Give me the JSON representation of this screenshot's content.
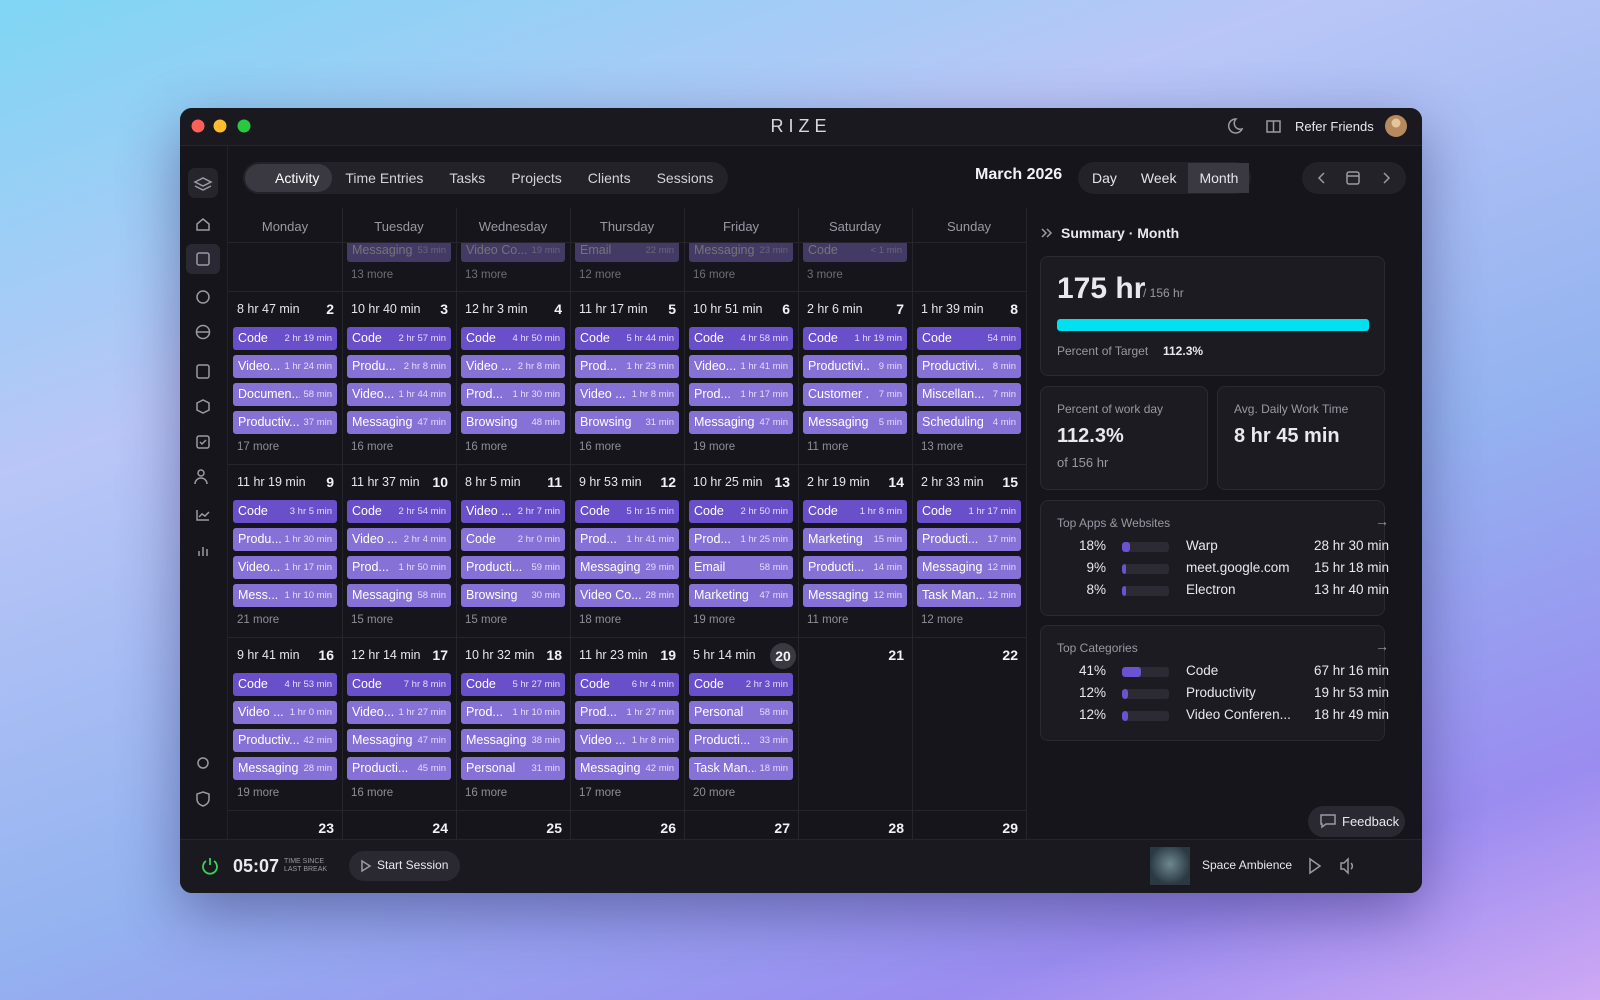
{
  "app_title": "RIZE",
  "header": {
    "refer": "Refer Friends"
  },
  "tabs": [
    "Activity",
    "Time Entries",
    "Tasks",
    "Projects",
    "Clients",
    "Sessions"
  ],
  "month_label": "March 2026",
  "views": [
    "Day",
    "Week",
    "Month"
  ],
  "active_view": 2,
  "active_tab": 0,
  "calendar": {
    "weekdays": [
      "Monday",
      "Tuesday",
      "Wednesday",
      "Thursday",
      "Friday",
      "Saturday",
      "Sunday"
    ],
    "weeks": [
      {
        "days": [
          {},
          {
            "entries": [
              {
                "name": "Messaging",
                "time": "53 min"
              }
            ],
            "more": "13 more"
          },
          {
            "entries": [
              {
                "name": "Video Co...",
                "time": "19 min"
              }
            ],
            "more": "13 more"
          },
          {
            "entries": [
              {
                "name": "Email",
                "time": "22 min"
              }
            ],
            "more": "12 more"
          },
          {
            "entries": [
              {
                "name": "Messaging",
                "time": "23 min"
              }
            ],
            "more": "16 more"
          },
          {
            "entries": [
              {
                "name": "Code",
                "time": "< 1 min"
              }
            ],
            "more": "3 more"
          },
          {}
        ]
      },
      {
        "days": [
          {
            "total": "8 hr 47 min",
            "date": 2,
            "entries": [
              {
                "name": "Code",
                "time": "2 hr 19 min"
              },
              {
                "name": "Video...",
                "time": "1 hr 24 min"
              },
              {
                "name": "Documen...",
                "time": "58 min"
              },
              {
                "name": "Productiv...",
                "time": "37 min"
              }
            ],
            "more": "17 more"
          },
          {
            "total": "10 hr 40 min",
            "date": 3,
            "entries": [
              {
                "name": "Code",
                "time": "2 hr 57 min"
              },
              {
                "name": "Produ...",
                "time": "2 hr 8 min"
              },
              {
                "name": "Video...",
                "time": "1 hr 44 min"
              },
              {
                "name": "Messaging",
                "time": "47 min"
              }
            ],
            "more": "16 more"
          },
          {
            "total": "12 hr 3 min",
            "date": 4,
            "entries": [
              {
                "name": "Code",
                "time": "4 hr 50 min"
              },
              {
                "name": "Video ...",
                "time": "2 hr 8 min"
              },
              {
                "name": "Prod...",
                "time": "1 hr 30 min"
              },
              {
                "name": "Browsing",
                "time": "48 min"
              }
            ],
            "more": "16 more"
          },
          {
            "total": "11 hr 17 min",
            "date": 5,
            "entries": [
              {
                "name": "Code",
                "time": "5 hr 44 min"
              },
              {
                "name": "Prod...",
                "time": "1 hr 23 min"
              },
              {
                "name": "Video ...",
                "time": "1 hr 8 min"
              },
              {
                "name": "Browsing",
                "time": "31 min"
              }
            ],
            "more": "16 more"
          },
          {
            "total": "10 hr 51 min",
            "date": 6,
            "entries": [
              {
                "name": "Code",
                "time": "4 hr 58 min"
              },
              {
                "name": "Video...",
                "time": "1 hr 41 min"
              },
              {
                "name": "Prod...",
                "time": "1 hr 17 min"
              },
              {
                "name": "Messaging",
                "time": "47 min"
              }
            ],
            "more": "19 more"
          },
          {
            "total": "2 hr 6 min",
            "date": 7,
            "entries": [
              {
                "name": "Code",
                "time": "1 hr 19 min"
              },
              {
                "name": "Productivi...",
                "time": "9 min"
              },
              {
                "name": "Customer ...",
                "time": "7 min"
              },
              {
                "name": "Messaging",
                "time": "5 min"
              }
            ],
            "more": "11 more"
          },
          {
            "total": "1 hr 39 min",
            "date": 8,
            "entries": [
              {
                "name": "Code",
                "time": "54 min"
              },
              {
                "name": "Productivi...",
                "time": "8 min"
              },
              {
                "name": "Miscellan...",
                "time": "7 min"
              },
              {
                "name": "Scheduling",
                "time": "4 min"
              }
            ],
            "more": "13 more"
          }
        ]
      },
      {
        "days": [
          {
            "total": "11 hr 19 min",
            "date": 9,
            "entries": [
              {
                "name": "Code",
                "time": "3 hr 5 min"
              },
              {
                "name": "Produ...",
                "time": "1 hr 30 min"
              },
              {
                "name": "Video...",
                "time": "1 hr 17 min"
              },
              {
                "name": "Mess...",
                "time": "1 hr 10 min"
              }
            ],
            "more": "21 more"
          },
          {
            "total": "11 hr 37 min",
            "date": 10,
            "entries": [
              {
                "name": "Code",
                "time": "2 hr 54 min"
              },
              {
                "name": "Video ...",
                "time": "2 hr 4 min"
              },
              {
                "name": "Prod...",
                "time": "1 hr 50 min"
              },
              {
                "name": "Messaging",
                "time": "58 min"
              }
            ],
            "more": "15 more"
          },
          {
            "total": "8 hr 5 min",
            "date": 11,
            "entries": [
              {
                "name": "Video ...",
                "time": "2 hr 7 min"
              },
              {
                "name": "Code",
                "time": "2 hr 0 min"
              },
              {
                "name": "Producti...",
                "time": "59 min"
              },
              {
                "name": "Browsing",
                "time": "30 min"
              }
            ],
            "more": "15 more"
          },
          {
            "total": "9 hr 53 min",
            "date": 12,
            "entries": [
              {
                "name": "Code",
                "time": "5 hr 15 min"
              },
              {
                "name": "Prod...",
                "time": "1 hr 41 min"
              },
              {
                "name": "Messaging",
                "time": "29 min"
              },
              {
                "name": "Video Co...",
                "time": "28 min"
              }
            ],
            "more": "18 more"
          },
          {
            "total": "10 hr 25 min",
            "date": 13,
            "entries": [
              {
                "name": "Code",
                "time": "2 hr 50 min"
              },
              {
                "name": "Prod...",
                "time": "1 hr 25 min"
              },
              {
                "name": "Email",
                "time": "58 min"
              },
              {
                "name": "Marketing",
                "time": "47 min"
              }
            ],
            "more": "19 more"
          },
          {
            "total": "2 hr 19 min",
            "date": 14,
            "entries": [
              {
                "name": "Code",
                "time": "1 hr 8 min"
              },
              {
                "name": "Marketing",
                "time": "15 min"
              },
              {
                "name": "Producti...",
                "time": "14 min"
              },
              {
                "name": "Messaging",
                "time": "12 min"
              }
            ],
            "more": "11 more"
          },
          {
            "total": "2 hr 33 min",
            "date": 15,
            "entries": [
              {
                "name": "Code",
                "time": "1 hr 17 min"
              },
              {
                "name": "Producti...",
                "time": "17 min"
              },
              {
                "name": "Messaging",
                "time": "12 min"
              },
              {
                "name": "Task Man...",
                "time": "12 min"
              }
            ],
            "more": "12 more"
          }
        ]
      },
      {
        "days": [
          {
            "total": "9 hr 41 min",
            "date": 16,
            "entries": [
              {
                "name": "Code",
                "time": "4 hr 53 min"
              },
              {
                "name": "Video ...",
                "time": "1 hr 0 min"
              },
              {
                "name": "Productiv...",
                "time": "42 min"
              },
              {
                "name": "Messaging",
                "time": "28 min"
              }
            ],
            "more": "19 more"
          },
          {
            "total": "12 hr 14 min",
            "date": 17,
            "entries": [
              {
                "name": "Code",
                "time": "7 hr 8 min"
              },
              {
                "name": "Video...",
                "time": "1 hr 27 min"
              },
              {
                "name": "Messaging",
                "time": "47 min"
              },
              {
                "name": "Producti...",
                "time": "45 min"
              }
            ],
            "more": "16 more"
          },
          {
            "total": "10 hr 32 min",
            "date": 18,
            "entries": [
              {
                "name": "Code",
                "time": "5 hr 27 min"
              },
              {
                "name": "Prod...",
                "time": "1 hr 10 min"
              },
              {
                "name": "Messaging",
                "time": "38 min"
              },
              {
                "name": "Personal",
                "time": "31 min"
              }
            ],
            "more": "16 more"
          },
          {
            "total": "11 hr 23 min",
            "date": 19,
            "entries": [
              {
                "name": "Code",
                "time": "6 hr 4 min"
              },
              {
                "name": "Prod...",
                "time": "1 hr 27 min"
              },
              {
                "name": "Video ...",
                "time": "1 hr 8 min"
              },
              {
                "name": "Messaging",
                "time": "42 min"
              }
            ],
            "more": "17 more"
          },
          {
            "total": "5 hr 14 min",
            "date": 20,
            "today": true,
            "entries": [
              {
                "name": "Code",
                "time": "2 hr 3 min"
              },
              {
                "name": "Personal",
                "time": "58 min"
              },
              {
                "name": "Producti...",
                "time": "33 min"
              },
              {
                "name": "Task Man...",
                "time": "18 min"
              }
            ],
            "more": "20 more"
          },
          {
            "date": 21
          },
          {
            "date": 22
          }
        ]
      },
      {
        "days": [
          {
            "date": 23
          },
          {
            "date": 24
          },
          {
            "date": 25
          },
          {
            "date": 26
          },
          {
            "date": 27
          },
          {
            "date": 28
          },
          {
            "date": 29
          }
        ]
      }
    ]
  },
  "summary": {
    "title": "Summary · Month",
    "total": "175 hr",
    "target": "/ 156 hr",
    "target_label": "Percent of Target",
    "target_percent": {
      "value": 112.3,
      "label": "112.3%"
    },
    "work_day": {
      "label": "Percent of work day",
      "value": "112.3%",
      "sub": "of 156 hr"
    },
    "avg": {
      "label": "Avg. Daily Work Time",
      "value": "8 hr 45 min"
    },
    "top_apps": {
      "title": "Top Apps & Websites",
      "rows": [
        {
          "percent": {
            "value": 18,
            "label": "18%"
          },
          "name": "Warp",
          "time": "28 hr 30 min"
        },
        {
          "percent": {
            "value": 9,
            "label": "9%"
          },
          "name": "meet.google.com",
          "time": "15 hr 18 min"
        },
        {
          "percent": {
            "value": 8,
            "label": "8%"
          },
          "name": "Electron",
          "time": "13 hr 40 min"
        }
      ]
    },
    "top_categories": {
      "title": "Top Categories",
      "rows": [
        {
          "percent": {
            "value": 41,
            "label": "41%"
          },
          "name": "Code",
          "time": "67 hr 16 min"
        },
        {
          "percent": {
            "value": 12,
            "label": "12%"
          },
          "name": "Productivity",
          "time": "19 hr 53 min"
        },
        {
          "percent": {
            "value": 12,
            "label": "12%"
          },
          "name": "Video Conferen...",
          "time": "18 hr 49 min"
        }
      ]
    }
  },
  "feedback": "Feedback",
  "footer": {
    "timer": "05:07",
    "timer_label_1": "TIME SINCE",
    "timer_label_2": "LAST BREAK",
    "start": "Start Session",
    "track": "Space Ambience"
  }
}
